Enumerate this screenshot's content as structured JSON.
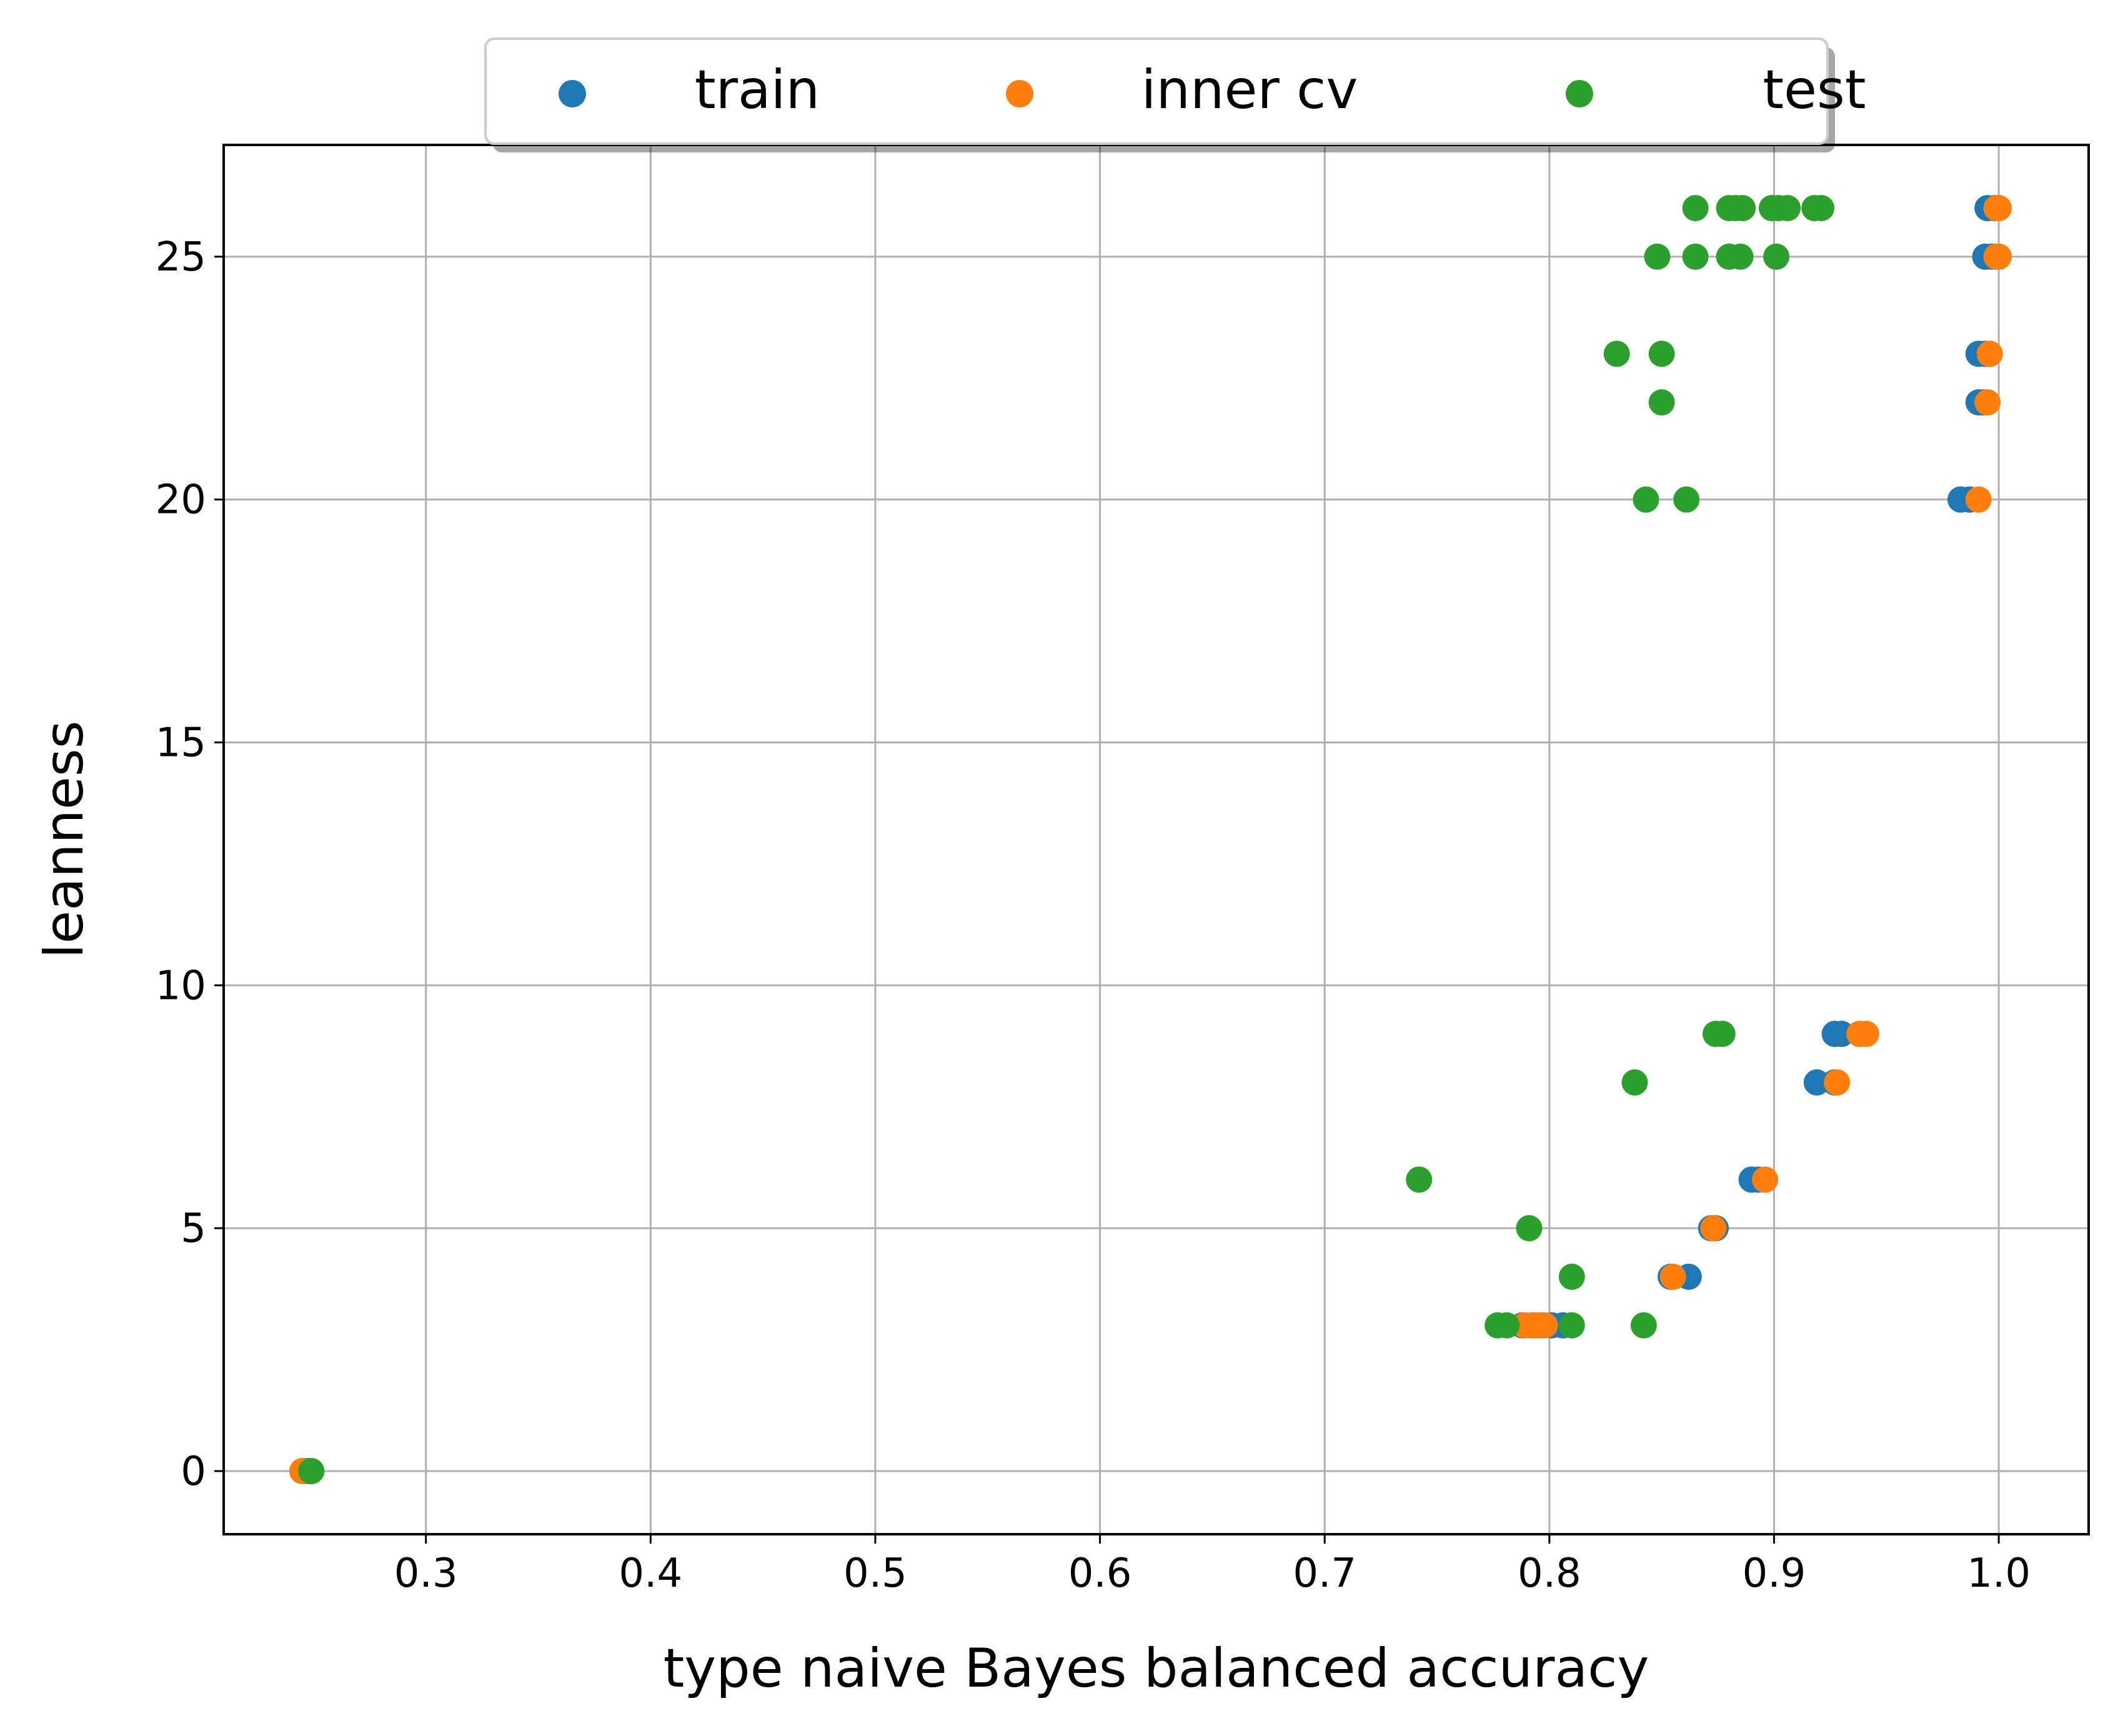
{
  "chart_data": {
    "type": "scatter",
    "title": "",
    "xlabel": "type naive Bayes balanced accuracy",
    "ylabel": "leanness",
    "xlim": [
      0.21,
      1.04
    ],
    "ylim": [
      -1.3,
      27.3
    ],
    "xticks": [
      0.3,
      0.4,
      0.5,
      0.6,
      0.7,
      0.8,
      0.9,
      1.0
    ],
    "xtick_labels": [
      "0.3",
      "0.4",
      "0.5",
      "0.6",
      "0.7",
      "0.8",
      "0.9",
      "1.0"
    ],
    "yticks": [
      0,
      5,
      10,
      15,
      20,
      25
    ],
    "ytick_labels": [
      "0",
      "5",
      "10",
      "15",
      "20",
      "25"
    ],
    "grid": true,
    "legend_placement": "top-center",
    "series": [
      {
        "name": "train",
        "color": "#1f77b4",
        "points": [
          [
            0.246,
            0
          ],
          [
            0.248,
            0
          ],
          [
            0.788,
            3
          ],
          [
            0.793,
            3
          ],
          [
            0.797,
            3
          ],
          [
            0.801,
            3
          ],
          [
            0.806,
            3
          ],
          [
            0.862,
            4
          ],
          [
            0.854,
            4
          ],
          [
            0.872,
            5
          ],
          [
            0.874,
            5
          ],
          [
            0.89,
            6
          ],
          [
            0.893,
            6
          ],
          [
            0.919,
            8
          ],
          [
            0.927,
            8
          ],
          [
            0.927,
            9
          ],
          [
            0.93,
            9
          ],
          [
            0.983,
            20
          ],
          [
            0.987,
            20
          ],
          [
            0.991,
            22
          ],
          [
            0.993,
            22
          ],
          [
            0.991,
            23
          ],
          [
            0.994,
            23
          ],
          [
            0.994,
            25
          ],
          [
            0.997,
            25
          ],
          [
            0.995,
            26
          ],
          [
            0.998,
            26
          ]
        ]
      },
      {
        "name": "inner cv",
        "color": "#ff7f0e",
        "points": [
          [
            0.245,
            0
          ],
          [
            0.789,
            3
          ],
          [
            0.792,
            3
          ],
          [
            0.795,
            3
          ],
          [
            0.798,
            3
          ],
          [
            0.855,
            4
          ],
          [
            0.873,
            5
          ],
          [
            0.896,
            6
          ],
          [
            0.928,
            8
          ],
          [
            0.938,
            9
          ],
          [
            0.941,
            9
          ],
          [
            0.991,
            20
          ],
          [
            0.995,
            22
          ],
          [
            0.996,
            23
          ],
          [
            0.999,
            25
          ],
          [
            1.0,
            25
          ],
          [
            0.999,
            26
          ],
          [
            1.0,
            26
          ]
        ]
      },
      {
        "name": "test",
        "color": "#2ca02c",
        "points": [
          [
            0.249,
            0
          ],
          [
            0.742,
            6
          ],
          [
            0.777,
            3
          ],
          [
            0.781,
            3
          ],
          [
            0.81,
            3
          ],
          [
            0.842,
            3
          ],
          [
            0.81,
            4
          ],
          [
            0.791,
            5
          ],
          [
            0.838,
            8
          ],
          [
            0.874,
            9
          ],
          [
            0.877,
            9
          ],
          [
            0.843,
            20
          ],
          [
            0.861,
            20
          ],
          [
            0.85,
            22
          ],
          [
            0.83,
            23
          ],
          [
            0.85,
            23
          ],
          [
            0.848,
            25
          ],
          [
            0.865,
            25
          ],
          [
            0.88,
            25
          ],
          [
            0.885,
            25
          ],
          [
            0.901,
            25
          ],
          [
            0.865,
            26
          ],
          [
            0.88,
            26
          ],
          [
            0.883,
            26
          ],
          [
            0.886,
            26
          ],
          [
            0.899,
            26
          ],
          [
            0.902,
            26
          ],
          [
            0.906,
            26
          ],
          [
            0.918,
            26
          ],
          [
            0.921,
            26
          ]
        ]
      }
    ]
  }
}
